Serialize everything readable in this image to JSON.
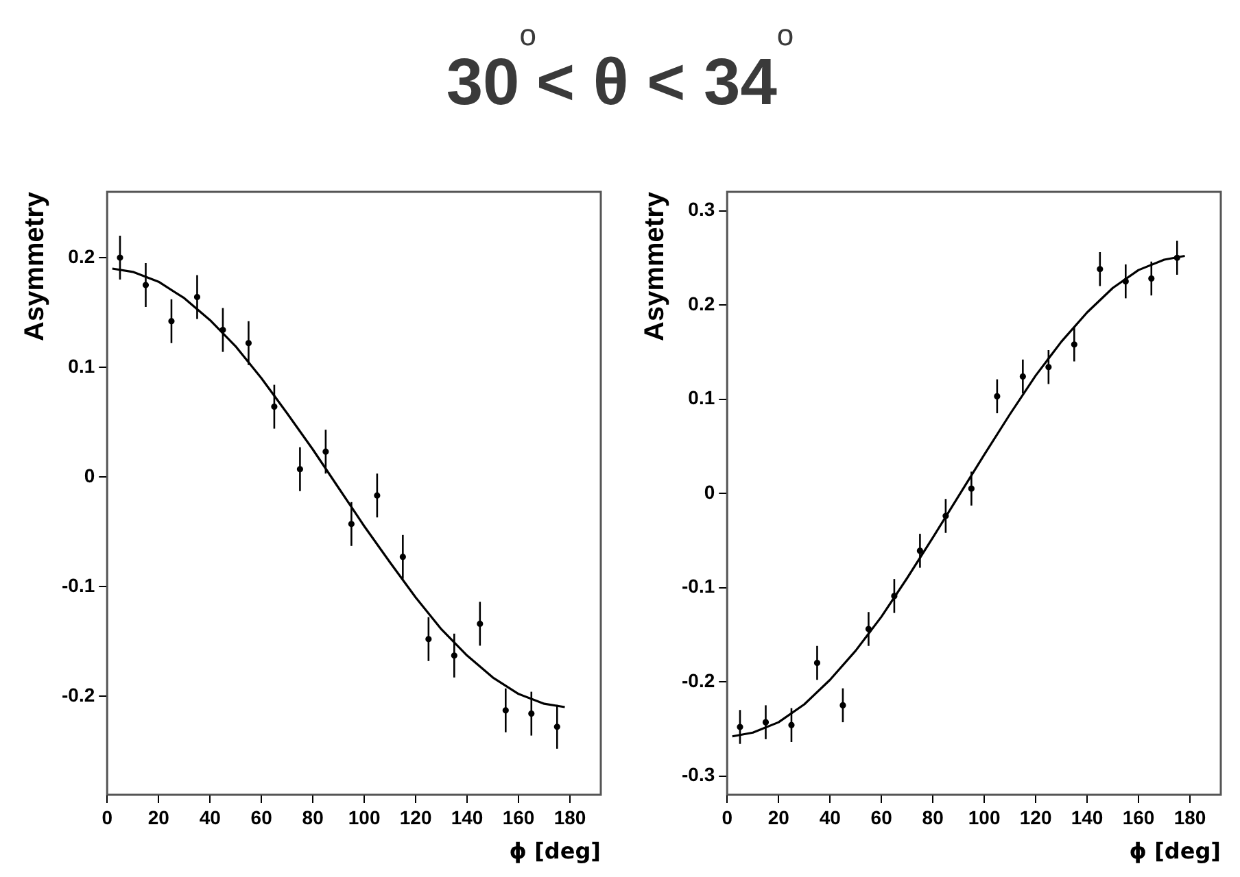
{
  "chart_data": [
    {
      "type": "scatter",
      "title": "30$^{o}$< θ < 34$^{o}$",
      "xlabel": "ϕ [deg]",
      "ylabel": "Asymmetry",
      "xlim": [
        0,
        192
      ],
      "ylim": [
        -0.29,
        0.26
      ],
      "xticks": [
        0,
        20,
        40,
        60,
        80,
        100,
        120,
        140,
        160,
        180
      ],
      "yticks": [
        -0.2,
        -0.1,
        0,
        0.1,
        0.2
      ],
      "grid": false,
      "legend": false,
      "series": [
        {
          "marker": "circle",
          "color": "#000000",
          "x": [
            5,
            15,
            25,
            35,
            45,
            55,
            65,
            75,
            85,
            95,
            105,
            115,
            125,
            135,
            145,
            155,
            165,
            175
          ],
          "values": [
            0.2,
            0.175,
            0.142,
            0.164,
            0.134,
            0.122,
            0.064,
            0.007,
            0.023,
            -0.043,
            -0.017,
            -0.073,
            -0.148,
            -0.163,
            -0.134,
            -0.213,
            -0.216,
            -0.228
          ],
          "errors": [
            0.02,
            0.02,
            0.02,
            0.02,
            0.02,
            0.02,
            0.02,
            0.02,
            0.02,
            0.02,
            0.02,
            0.02,
            0.02,
            0.02,
            0.02,
            0.02,
            0.02,
            0.02
          ]
        },
        {
          "type": "line",
          "color": "#000000",
          "x": [
            2,
            10,
            20,
            30,
            40,
            50,
            60,
            70,
            80,
            90,
            100,
            110,
            120,
            130,
            140,
            150,
            160,
            170,
            178
          ],
          "values": [
            0.19,
            0.187,
            0.178,
            0.163,
            0.143,
            0.119,
            0.09,
            0.058,
            0.025,
            -0.01,
            -0.045,
            -0.078,
            -0.11,
            -0.139,
            -0.163,
            -0.183,
            -0.198,
            -0.207,
            -0.21
          ]
        }
      ]
    },
    {
      "type": "scatter",
      "xlabel": "ϕ [deg]",
      "ylabel": "Asymmetry",
      "xlim": [
        0,
        192
      ],
      "ylim": [
        -0.32,
        0.32
      ],
      "xticks": [
        0,
        20,
        40,
        60,
        80,
        100,
        120,
        140,
        160,
        180
      ],
      "yticks": [
        -0.3,
        -0.2,
        -0.1,
        0,
        0.1,
        0.2,
        0.3
      ],
      "grid": false,
      "legend": false,
      "series": [
        {
          "marker": "circle",
          "color": "#000000",
          "x": [
            5,
            15,
            25,
            35,
            45,
            55,
            65,
            75,
            85,
            95,
            105,
            115,
            125,
            135,
            145,
            155,
            165,
            175
          ],
          "values": [
            -0.248,
            -0.243,
            -0.246,
            -0.18,
            -0.225,
            -0.144,
            -0.109,
            -0.061,
            -0.024,
            0.005,
            0.103,
            0.124,
            0.134,
            0.158,
            0.238,
            0.225,
            0.228,
            0.25
          ],
          "errors": [
            0.018,
            0.018,
            0.018,
            0.018,
            0.018,
            0.018,
            0.018,
            0.018,
            0.018,
            0.018,
            0.018,
            0.018,
            0.018,
            0.018,
            0.018,
            0.018,
            0.018,
            0.018
          ]
        },
        {
          "type": "line",
          "color": "#000000",
          "x": [
            2,
            10,
            20,
            30,
            40,
            50,
            60,
            70,
            80,
            90,
            100,
            110,
            120,
            130,
            140,
            150,
            160,
            170,
            178
          ],
          "values": [
            -0.258,
            -0.254,
            -0.243,
            -0.224,
            -0.198,
            -0.167,
            -0.131,
            -0.09,
            -0.047,
            -0.003,
            0.041,
            0.084,
            0.125,
            0.161,
            0.192,
            0.218,
            0.237,
            0.248,
            0.252
          ]
        }
      ]
    }
  ]
}
